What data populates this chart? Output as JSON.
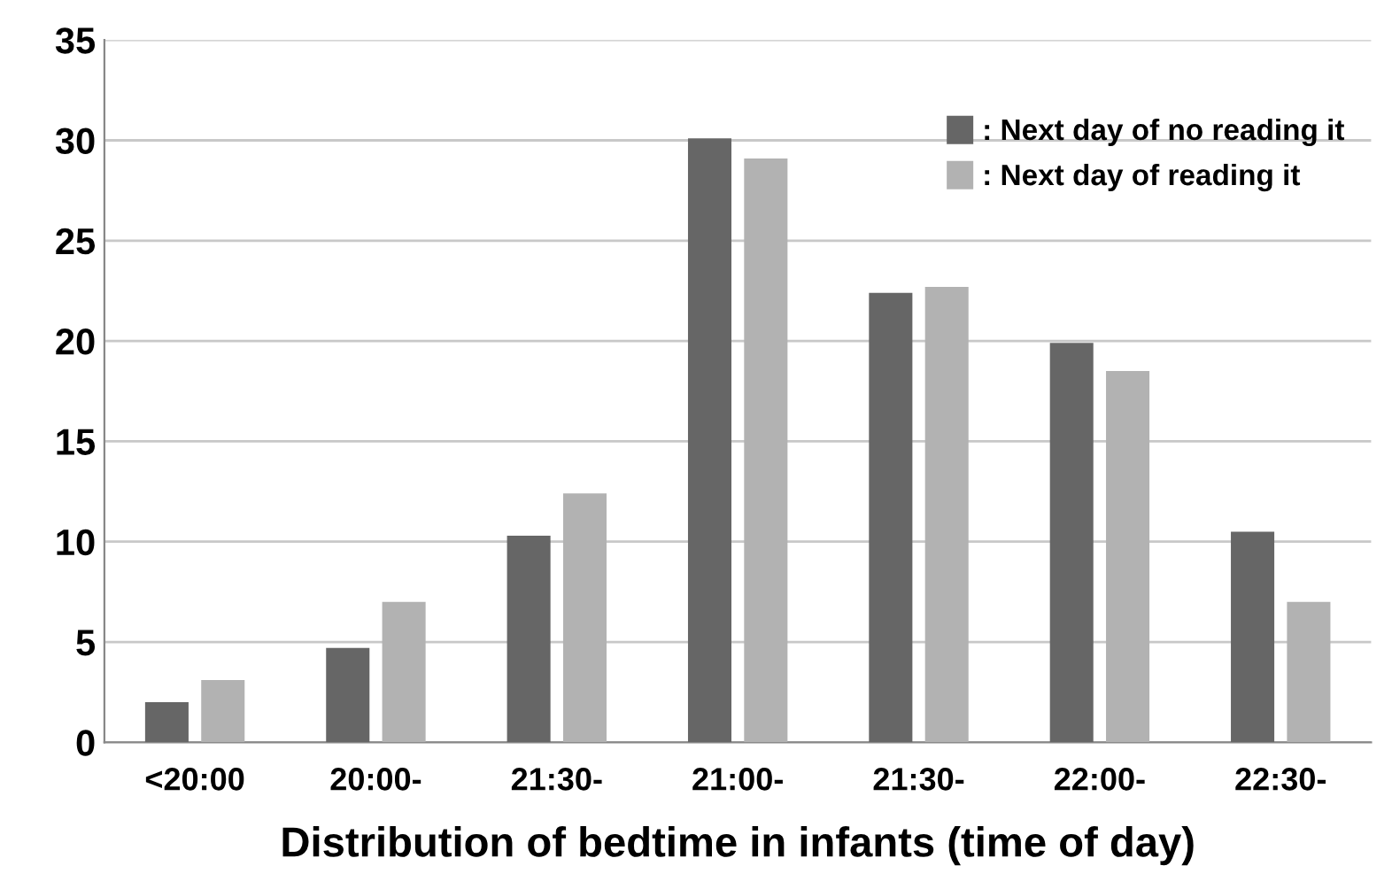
{
  "chart_data": {
    "type": "bar",
    "xlabel": "Distribution of bedtime in infants (time of day)",
    "categories": [
      "<20:00",
      "20:00-",
      "21:30-",
      "21:00-",
      "21:30-",
      "22:00-",
      "22:30-"
    ],
    "series": [
      {
        "name": ": Next day of no reading it",
        "color": "#666666",
        "values": [
          2.0,
          4.7,
          10.3,
          30.1,
          22.4,
          19.9,
          10.5
        ]
      },
      {
        "name": ": Next day of reading it",
        "color": "#b2b2b2",
        "values": [
          3.1,
          7.0,
          12.4,
          29.1,
          22.7,
          18.5,
          7.0
        ]
      }
    ],
    "ylim": [
      0,
      35
    ],
    "yticks": [
      0,
      5,
      10,
      15,
      20,
      25,
      30,
      35
    ],
    "grid": "y",
    "legend": "top right"
  }
}
